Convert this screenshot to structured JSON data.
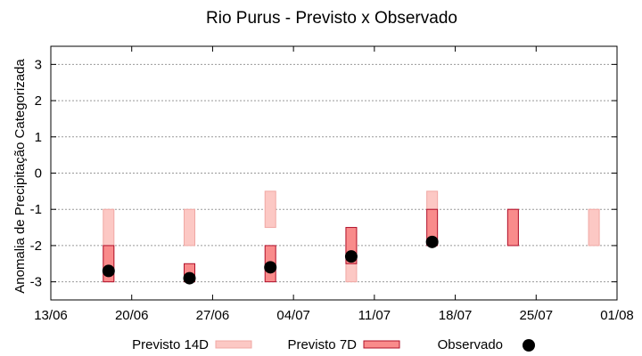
{
  "chart_data": {
    "type": "bar",
    "title": "Rio Purus - Previsto x Observado",
    "ylabel": "Anomalia de Precipitação Categorizada",
    "xlabel": "",
    "ylim": [
      -3.5,
      3.5
    ],
    "yticks": [
      3,
      2,
      1,
      0,
      -1,
      -2,
      -3
    ],
    "ytick_labels": [
      "3",
      "2",
      "1",
      "0",
      "-1",
      "-2",
      "-3"
    ],
    "xlim": [
      "13/06",
      "01/08"
    ],
    "xticks": [
      "13/06",
      "20/06",
      "27/06",
      "04/07",
      "11/07",
      "18/07",
      "25/07",
      "01/08"
    ],
    "grid": true,
    "legend_position": "bottom",
    "colors": {
      "previsto_14d_fill": "#fcc8c4",
      "previsto_14d_stroke": "#f0a8a4",
      "previsto_7d_fill": "#f98b8b",
      "previsto_7d_stroke": "#b0102a",
      "observado": "#000000",
      "grid": "#999999"
    },
    "series": [
      {
        "name": "Previsto 14D",
        "kind": "range",
        "points": [
          {
            "date": "18/06",
            "low": -3.0,
            "high": -1.0
          },
          {
            "date": "25/06",
            "low": -2.0,
            "high": -1.0
          },
          {
            "date": "02/07",
            "low": -1.5,
            "high": -0.5
          },
          {
            "date": "09/07",
            "low": -3.0,
            "high": -1.5
          },
          {
            "date": "16/07",
            "low": -1.0,
            "high": -0.5
          },
          {
            "date": "23/07",
            "low": -2.0,
            "high": -1.0
          },
          {
            "date": "30/07",
            "low": -2.0,
            "high": -1.0
          }
        ]
      },
      {
        "name": "Previsto 7D",
        "kind": "range",
        "points": [
          {
            "date": "18/06",
            "low": -3.0,
            "high": -2.0
          },
          {
            "date": "25/06",
            "low": -3.0,
            "high": -2.5
          },
          {
            "date": "02/07",
            "low": -3.0,
            "high": -2.0
          },
          {
            "date": "09/07",
            "low": -2.5,
            "high": -1.5
          },
          {
            "date": "16/07",
            "low": -2.0,
            "high": -1.0
          },
          {
            "date": "23/07",
            "low": -2.0,
            "high": -1.0
          }
        ]
      },
      {
        "name": "Observado",
        "kind": "point",
        "points": [
          {
            "date": "18/06",
            "value": -2.7
          },
          {
            "date": "25/06",
            "value": -2.9
          },
          {
            "date": "02/07",
            "value": -2.6
          },
          {
            "date": "09/07",
            "value": -2.3
          },
          {
            "date": "16/07",
            "value": -1.9
          }
        ]
      }
    ]
  }
}
